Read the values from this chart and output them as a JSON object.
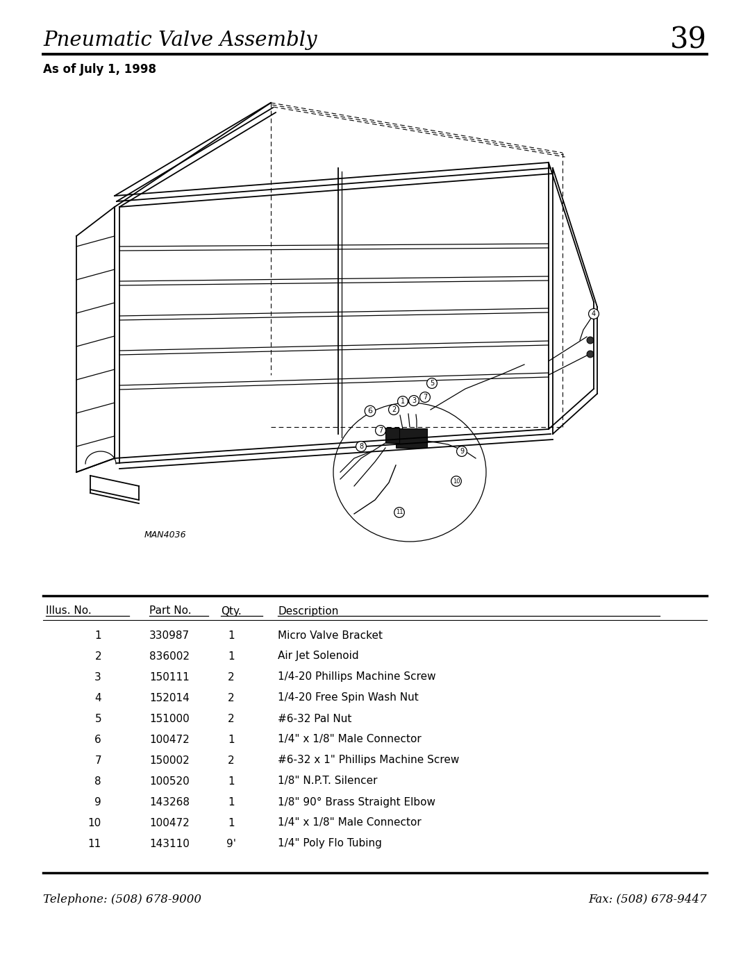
{
  "page_title": "Pneumatic Valve Assembly",
  "page_number": "39",
  "subtitle": "As of July 1, 1998",
  "table_headers": [
    "Illus. No.",
    "Part No.",
    "Qty.",
    "Description"
  ],
  "table_rows": [
    [
      "1",
      "330987",
      "1",
      "Micro Valve Bracket"
    ],
    [
      "2",
      "836002",
      "1",
      "Air Jet Solenoid"
    ],
    [
      "3",
      "150111",
      "2",
      "1/4-20 Phillips Machine Screw"
    ],
    [
      "4",
      "152014",
      "2",
      "1/4-20 Free Spin Wash Nut"
    ],
    [
      "5",
      "151000",
      "2",
      "#6-32 Pal Nut"
    ],
    [
      "6",
      "100472",
      "1",
      "1/4\" x 1/8\" Male Connector"
    ],
    [
      "7",
      "150002",
      "2",
      "#6-32 x 1\" Phillips Machine Screw"
    ],
    [
      "8",
      "100520",
      "1",
      "1/8\" N.P.T. Silencer"
    ],
    [
      "9",
      "143268",
      "1",
      "1/8\" 90° Brass Straight Elbow"
    ],
    [
      "10",
      "100472",
      "1",
      "1/4\" x 1/8\" Male Connector"
    ],
    [
      "11",
      "143110",
      "9'",
      "1/4\" Poly Flo Tubing"
    ]
  ],
  "footer_left": "Telephone: (508) 678-9000",
  "footer_right": "Fax: (508) 678-9447",
  "diagram_label": "MAN4036",
  "bg_color": "#ffffff",
  "text_color": "#000000"
}
